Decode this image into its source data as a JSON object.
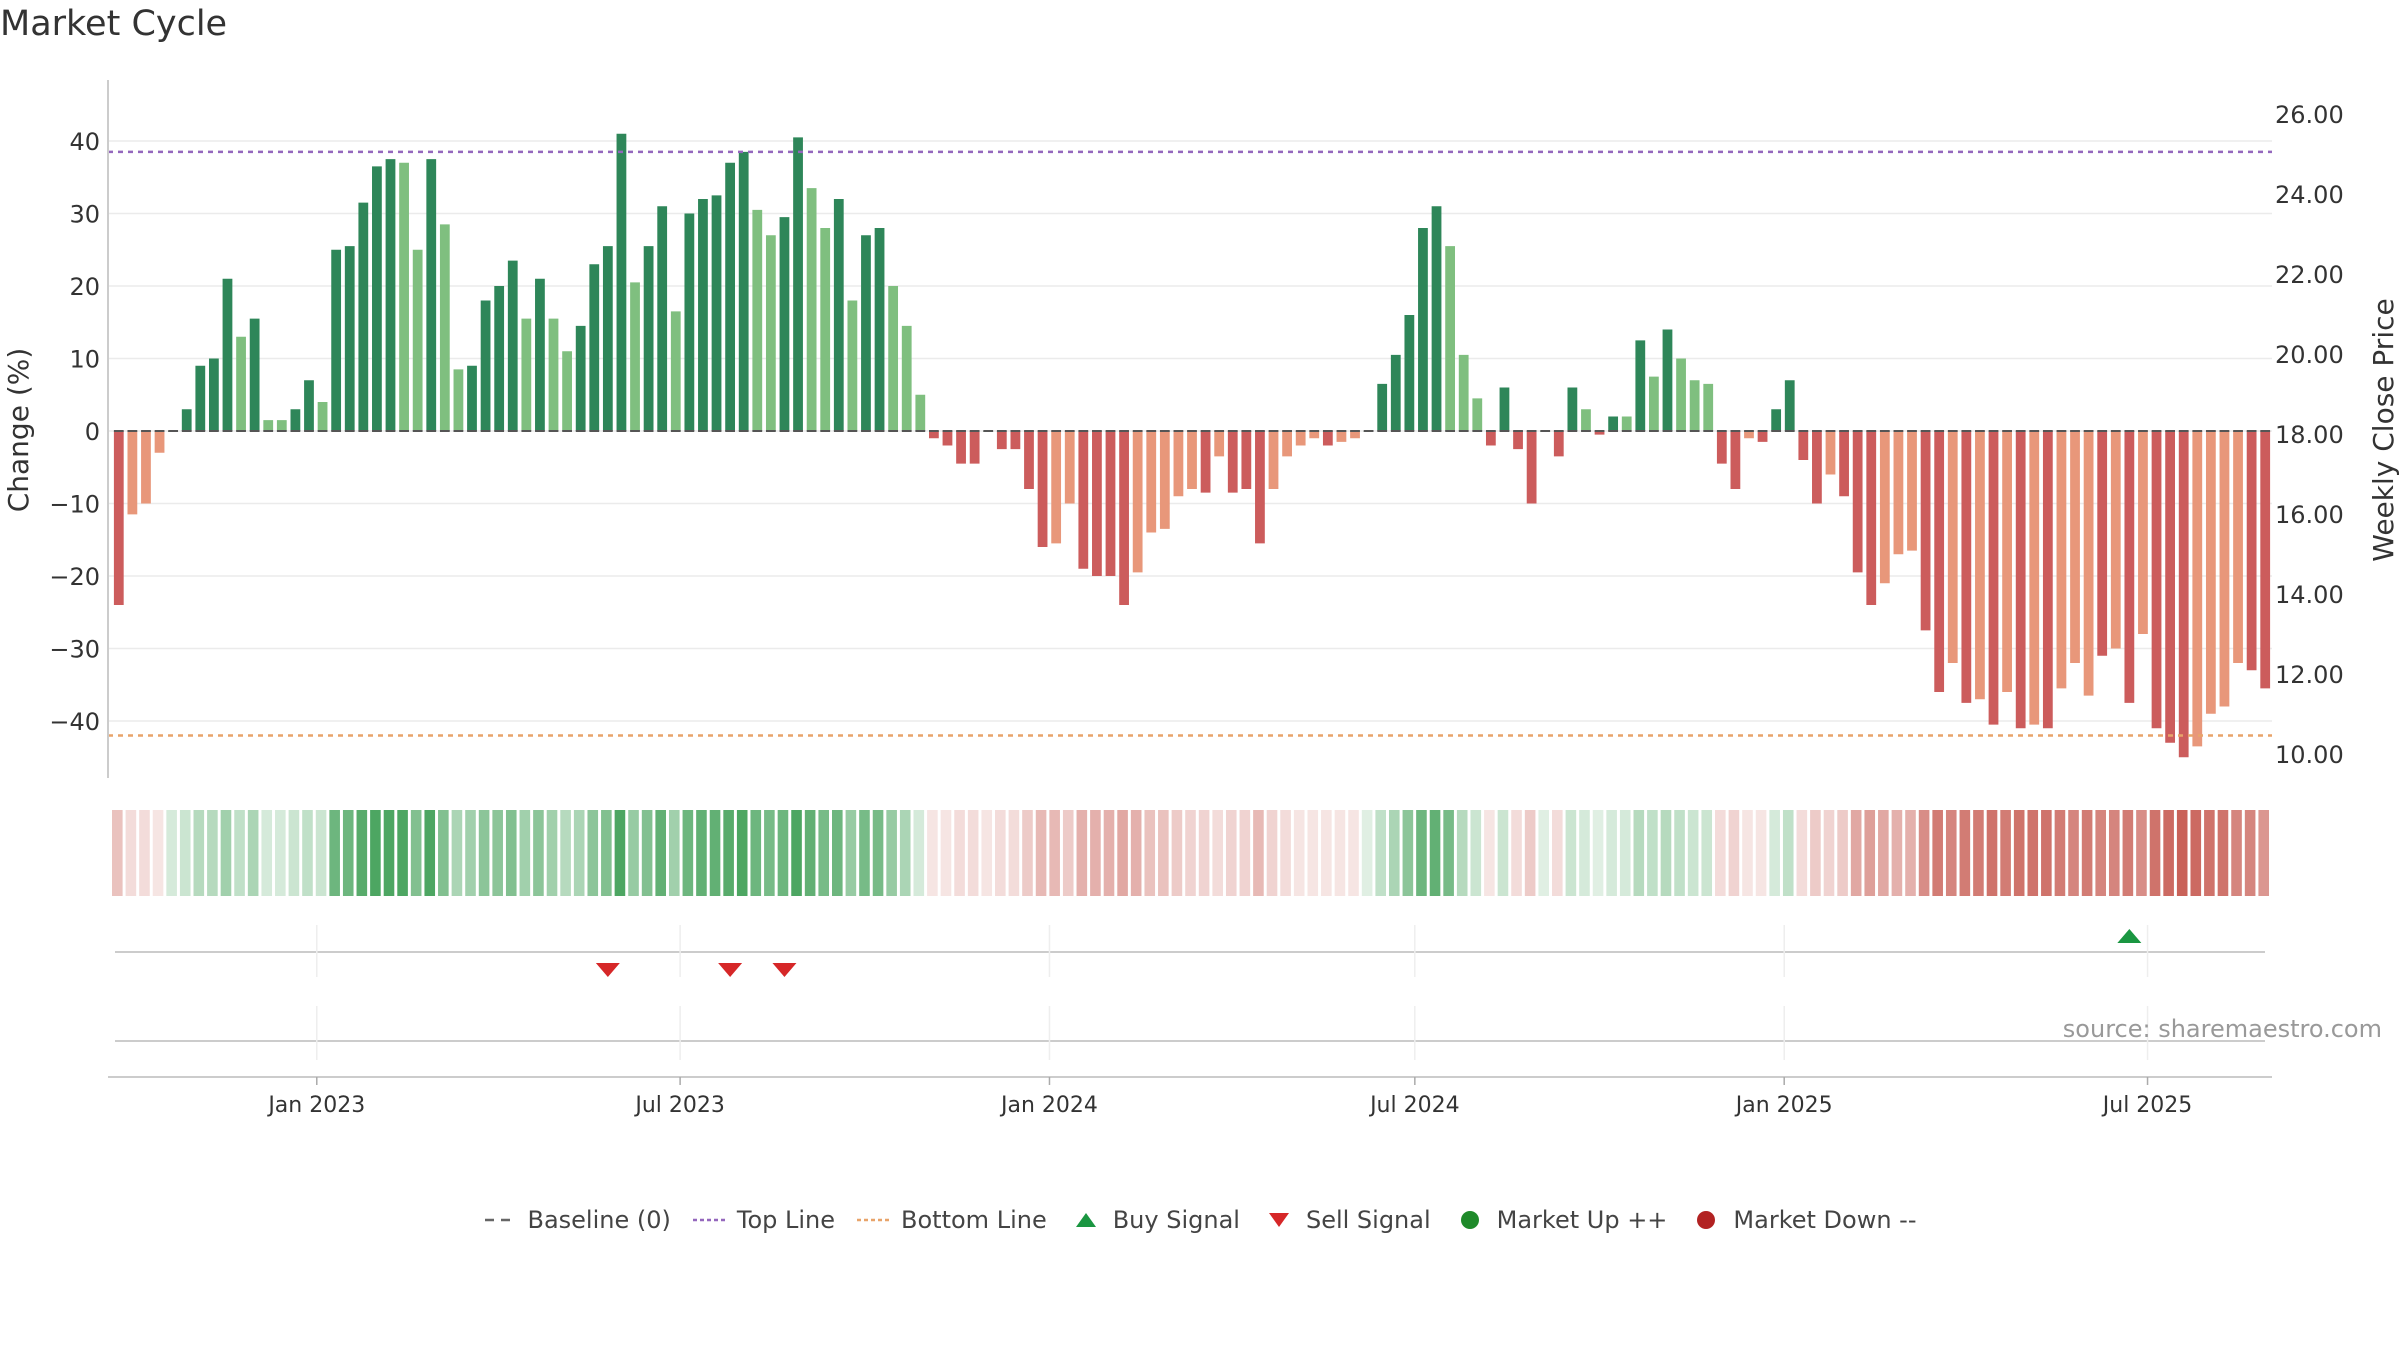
{
  "title": "Market Cycle",
  "source": "source: sharemaestro.com",
  "legend": [
    {
      "label": "Baseline (0)",
      "key": "dash-gray",
      "color": "#666666"
    },
    {
      "label": "Top Line",
      "key": "dot-purple",
      "color": "#9467bd"
    },
    {
      "label": "Bottom Line",
      "key": "dot-orange",
      "color": "#e8a46a"
    },
    {
      "label": "Buy Signal",
      "key": "triangle-up",
      "color": "#1a9641"
    },
    {
      "label": "Sell Signal",
      "key": "triangle-down",
      "color": "#d62728"
    },
    {
      "label": "Market Up ++",
      "key": "circle",
      "color": "#1f8a2a"
    },
    {
      "label": "Market Down --",
      "key": "circle",
      "color": "#b22222"
    }
  ],
  "chart_data": {
    "type": "bar",
    "ylabel": "Change (%)",
    "y2label": "Weekly Close Price",
    "ylim": [
      -48,
      48
    ],
    "yticks": [
      "−40",
      "−30",
      "−20",
      "−10",
      "0",
      "10",
      "20",
      "30",
      "40"
    ],
    "y2lim": [
      9.4,
      26.6
    ],
    "y2ticks": [
      "10.00",
      "12.00",
      "14.00",
      "16.00",
      "18.00",
      "20.00",
      "22.00",
      "24.00",
      "26.00"
    ],
    "top_line": 38.5,
    "bottom_line": -42,
    "x_start": "2022-09-19",
    "x_end": "2025-09-01",
    "x_ticks": [
      {
        "date": "2023-01-01",
        "label": "Jan 2023"
      },
      {
        "date": "2023-07-01",
        "label": "Jul 2023"
      },
      {
        "date": "2024-01-01",
        "label": "Jan 2024"
      },
      {
        "date": "2024-07-01",
        "label": "Jul 2024"
      },
      {
        "date": "2025-01-01",
        "label": "Jan 2025"
      },
      {
        "date": "2025-07-01",
        "label": "Jul 2025"
      }
    ],
    "colors": {
      "up_strong": "#2e8659",
      "up_weak": "#7fbf7f",
      "down_strong": "#cc5c5c",
      "down_weak": "#e8977a",
      "top_line": "#9467bd",
      "bottom_line": "#e8a46a",
      "buy": "#1a9641",
      "sell": "#d62728"
    },
    "values": [
      -24,
      -11.5,
      -10,
      -3,
      0,
      3,
      9,
      10,
      21,
      13,
      15.5,
      1.5,
      1.5,
      3,
      7,
      4,
      25,
      25.5,
      31.5,
      36.5,
      37.5,
      37,
      25,
      37.5,
      28.5,
      8.5,
      9,
      18,
      20,
      23.5,
      15.5,
      21,
      15.5,
      11,
      14.5,
      23,
      25.5,
      41,
      20.5,
      25.5,
      31,
      16.5,
      30,
      32,
      32.5,
      37,
      38.5,
      30.5,
      27,
      29.5,
      40.5,
      33.5,
      28,
      32,
      18,
      27,
      28,
      20,
      14.5,
      5,
      -1,
      -2,
      -4.5,
      -4.5,
      0,
      -2.5,
      -2.5,
      -8,
      -16,
      -15.5,
      -10,
      -19,
      -20,
      -20,
      -24,
      -19.5,
      -14,
      -13.5,
      -9,
      -8,
      -8.5,
      -3.5,
      -8.5,
      -8,
      -15.5,
      -8,
      -3.5,
      -2,
      -1,
      -2,
      -1.5,
      -1,
      0,
      6.5,
      10.5,
      16,
      28,
      31,
      25.5,
      10.5,
      4.5,
      -2,
      6,
      -2.5,
      -10,
      0,
      -3.5,
      6,
      3,
      -0.5,
      2,
      2,
      12.5,
      7.5,
      14,
      10,
      7,
      6.5,
      -4.5,
      -8,
      -1,
      -1.5,
      3,
      7,
      -4,
      -10,
      -6,
      -9,
      -19.5,
      -24,
      -21,
      -17,
      -16.5,
      -27.5,
      -36,
      -32,
      -37.5,
      -37,
      -40.5,
      -36,
      -41,
      -40.5,
      -41,
      -35.5,
      -32,
      -36.5,
      -31,
      -30,
      -37.5,
      -28,
      -41,
      -43,
      -45,
      -43.5,
      -39,
      -38,
      -32,
      -33,
      -35.5
    ],
    "strong": [
      1,
      0,
      0,
      0,
      1,
      1,
      1,
      1,
      1,
      0,
      1,
      0,
      0,
      1,
      1,
      0,
      1,
      1,
      1,
      1,
      1,
      0,
      0,
      1,
      0,
      0,
      1,
      1,
      1,
      1,
      0,
      1,
      0,
      0,
      1,
      1,
      1,
      1,
      0,
      1,
      1,
      0,
      1,
      1,
      1,
      1,
      1,
      0,
      0,
      1,
      1,
      0,
      0,
      1,
      0,
      1,
      1,
      0,
      0,
      0,
      1,
      1,
      1,
      1,
      0,
      1,
      1,
      1,
      1,
      0,
      0,
      1,
      1,
      1,
      1,
      0,
      0,
      0,
      0,
      0,
      1,
      0,
      1,
      1,
      1,
      0,
      0,
      0,
      0,
      1,
      0,
      0,
      0,
      1,
      1,
      1,
      1,
      1,
      0,
      0,
      0,
      1,
      1,
      1,
      1,
      0,
      1,
      1,
      0,
      1,
      1,
      0,
      1,
      0,
      1,
      0,
      0,
      0,
      1,
      1,
      0,
      1,
      1,
      1,
      1,
      1,
      0,
      1,
      1,
      1,
      0,
      0,
      0,
      1,
      1,
      0,
      1,
      0,
      1,
      0,
      1,
      0,
      1,
      0,
      0,
      0,
      1,
      0,
      1,
      0,
      1,
      1,
      1,
      0,
      0,
      0,
      0,
      1,
      1
    ],
    "heat": [
      -0.35,
      -0.2,
      -0.2,
      -0.15,
      0.2,
      0.25,
      0.35,
      0.35,
      0.45,
      0.3,
      0.4,
      0.2,
      0.2,
      0.25,
      0.3,
      0.25,
      0.7,
      0.7,
      0.8,
      0.85,
      0.85,
      0.85,
      0.6,
      0.85,
      0.6,
      0.4,
      0.45,
      0.55,
      0.55,
      0.6,
      0.45,
      0.55,
      0.45,
      0.35,
      0.4,
      0.55,
      0.6,
      0.85,
      0.5,
      0.6,
      0.75,
      0.45,
      0.7,
      0.75,
      0.75,
      0.8,
      0.85,
      0.7,
      0.65,
      0.7,
      0.85,
      0.75,
      0.65,
      0.7,
      0.5,
      0.65,
      0.65,
      0.5,
      0.4,
      0.2,
      -0.15,
      -0.15,
      -0.2,
      -0.2,
      -0.15,
      -0.2,
      -0.2,
      -0.3,
      -0.4,
      -0.4,
      -0.3,
      -0.45,
      -0.45,
      -0.45,
      -0.5,
      -0.45,
      -0.35,
      -0.35,
      -0.3,
      -0.25,
      -0.25,
      -0.2,
      -0.25,
      -0.25,
      -0.4,
      -0.25,
      -0.2,
      -0.15,
      -0.15,
      -0.15,
      -0.15,
      -0.15,
      0.15,
      0.3,
      0.4,
      0.55,
      0.7,
      0.75,
      0.65,
      0.35,
      0.25,
      -0.15,
      0.25,
      -0.2,
      -0.3,
      0.15,
      -0.2,
      0.25,
      0.2,
      0.15,
      0.2,
      0.2,
      0.35,
      0.3,
      0.35,
      0.3,
      0.25,
      0.25,
      -0.2,
      -0.25,
      -0.15,
      -0.15,
      0.2,
      0.3,
      -0.2,
      -0.3,
      -0.25,
      -0.3,
      -0.5,
      -0.55,
      -0.5,
      -0.45,
      -0.45,
      -0.65,
      -0.75,
      -0.7,
      -0.75,
      -0.75,
      -0.8,
      -0.75,
      -0.8,
      -0.8,
      -0.8,
      -0.75,
      -0.7,
      -0.75,
      -0.7,
      -0.7,
      -0.75,
      -0.65,
      -0.8,
      -0.85,
      -0.9,
      -0.85,
      -0.8,
      -0.8,
      -0.7,
      -0.7,
      -0.6
    ],
    "buy_signals": [
      148
    ],
    "sell_signals": [
      36,
      45,
      49
    ]
  }
}
